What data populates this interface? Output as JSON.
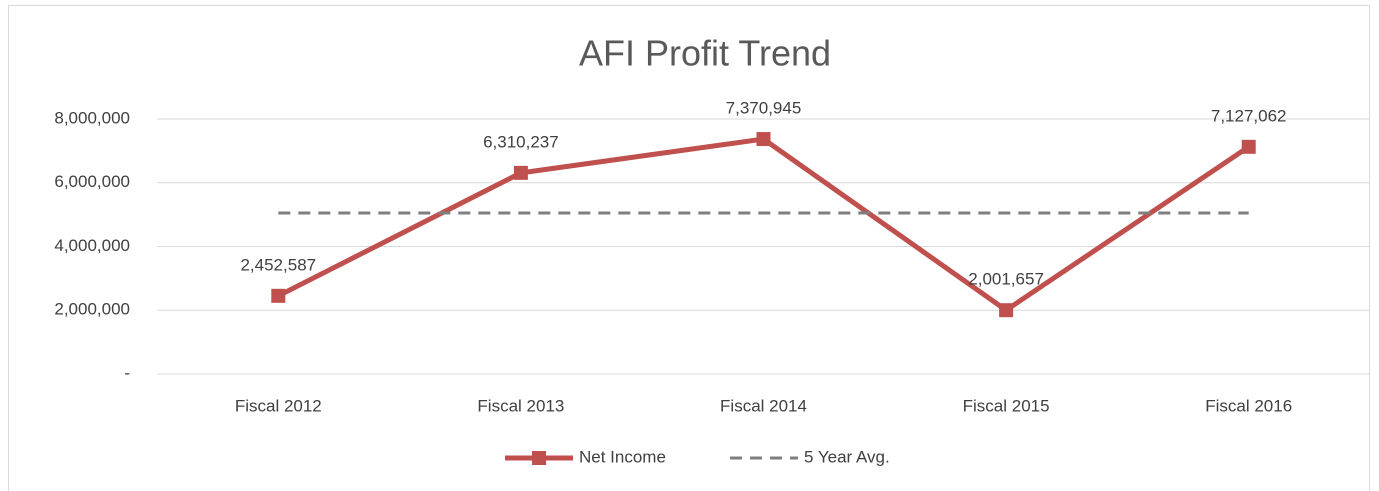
{
  "chart_data": {
    "type": "line",
    "title": "AFI Profit Trend",
    "categories": [
      "Fiscal 2012",
      "Fiscal 2013",
      "Fiscal 2014",
      "Fiscal 2015",
      "Fiscal 2016"
    ],
    "series": [
      {
        "name": "Net Income",
        "color": "#c0504d",
        "values": [
          2452587,
          6310237,
          7370945,
          2001657,
          7127062
        ],
        "value_labels": [
          "2,452,587",
          "6,310,237",
          "7,370,945",
          "2,001,657",
          "7,127,062"
        ]
      },
      {
        "name": "5 Year Avg.",
        "color": "#7f7f7f",
        "values": [
          5052498,
          5052498,
          5052498,
          5052498,
          5052498
        ]
      }
    ],
    "ylim": [
      0,
      8000000
    ],
    "yticks": [
      {
        "value": 0,
        "label": "-"
      },
      {
        "value": 2000000,
        "label": "2,000,000"
      },
      {
        "value": 4000000,
        "label": "4,000,000"
      },
      {
        "value": 6000000,
        "label": "6,000,000"
      },
      {
        "value": 8000000,
        "label": "8,000,000"
      }
    ],
    "grid": true,
    "legend": "bottom"
  }
}
